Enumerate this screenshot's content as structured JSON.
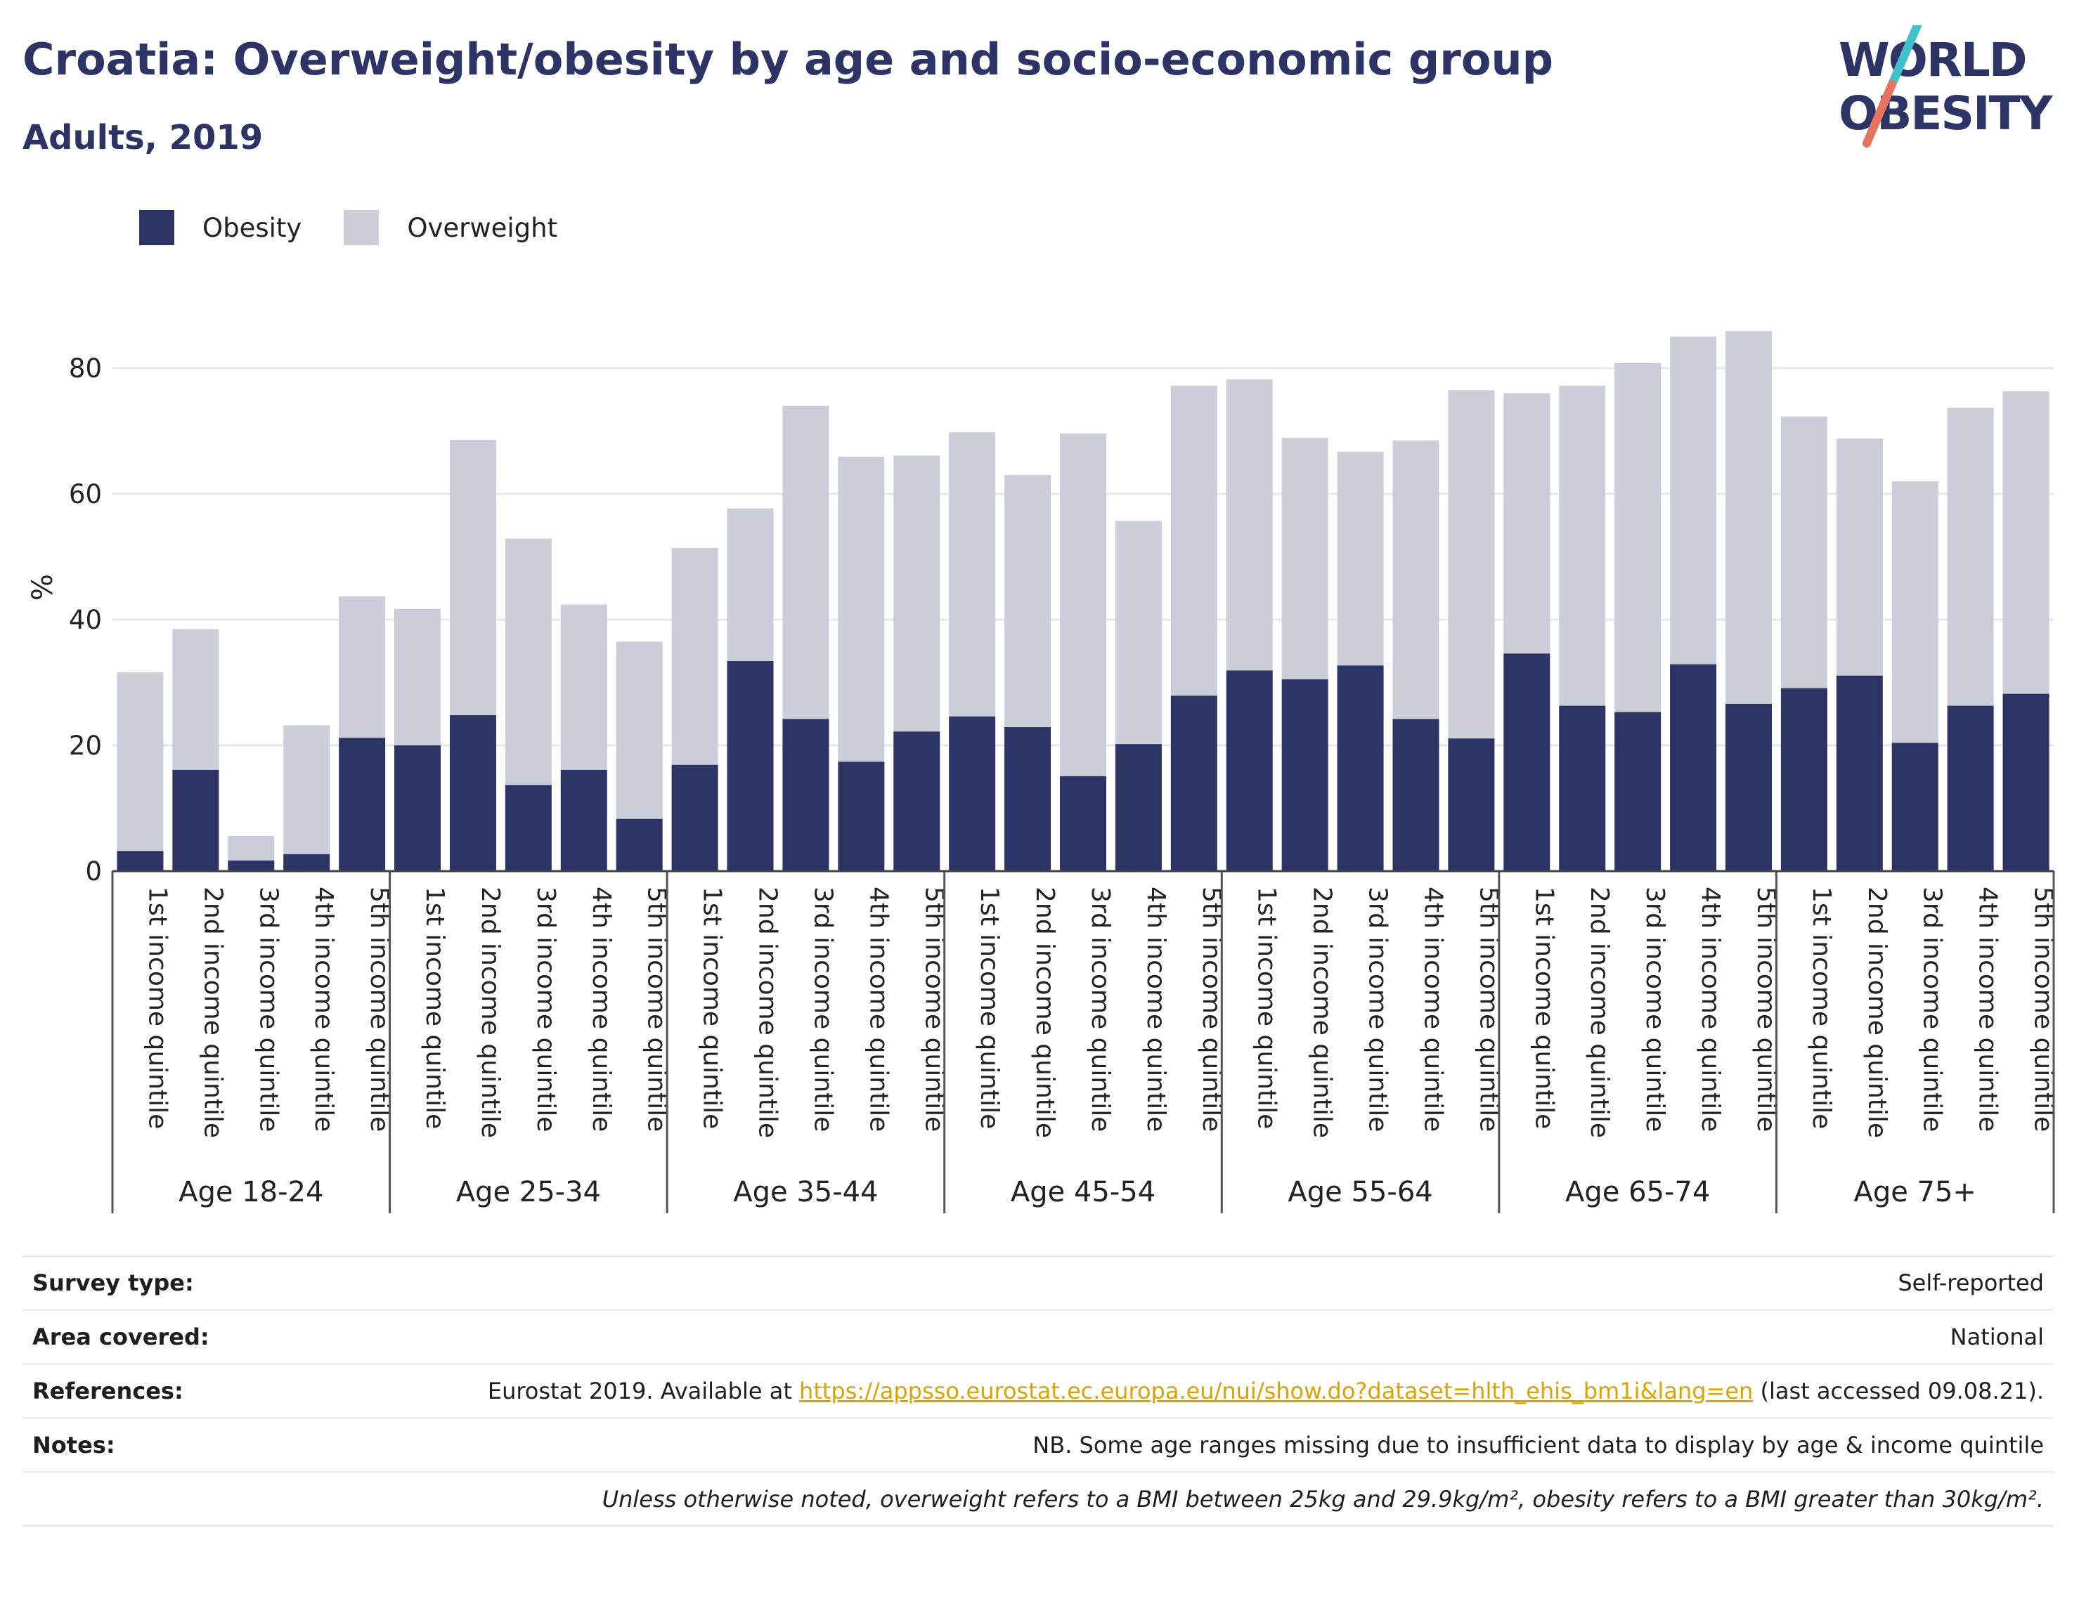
{
  "title": "Croatia: Overweight/obesity by age and socio-economic group",
  "subtitle": "Adults, 2019",
  "logo": {
    "line1": "WORLD",
    "line2": "OBESITY",
    "accent_colors": [
      "#3ec1c9",
      "#e8735f"
    ]
  },
  "colors": {
    "obesity": "#2b3465",
    "overweight": "#cbcdd9",
    "grid": "#e6e7ec",
    "text": "#222222"
  },
  "chart_data": {
    "type": "bar",
    "stacked": true,
    "ylabel": "%",
    "ylim": [
      0,
      90
    ],
    "yticks": [
      0,
      20,
      40,
      60,
      80
    ],
    "grid": "horizontal",
    "legend_position": "top-left",
    "groups": [
      "Age 18-24",
      "Age 25-34",
      "Age 35-44",
      "Age 45-54",
      "Age 55-64",
      "Age 65-74",
      "Age 75+"
    ],
    "categories": [
      "1st income quintile",
      "2nd income quintile",
      "3rd income quintile",
      "4th income quintile",
      "5th income quintile"
    ],
    "series": [
      {
        "name": "Obesity",
        "values": [
          [
            3.2,
            16.1,
            1.7,
            2.7,
            21.2
          ],
          [
            20.0,
            24.8,
            13.7,
            16.1,
            8.3
          ],
          [
            16.9,
            33.4,
            24.2,
            17.4,
            22.2
          ],
          [
            24.6,
            22.9,
            15.1,
            20.2,
            27.9
          ],
          [
            31.9,
            30.5,
            32.7,
            24.2,
            21.1
          ],
          [
            34.6,
            26.3,
            25.3,
            32.9,
            26.6
          ],
          [
            29.1,
            31.1,
            20.4,
            26.3,
            28.2
          ]
        ]
      },
      {
        "name": "Overweight",
        "values": [
          [
            28.4,
            22.4,
            3.9,
            20.5,
            22.5
          ],
          [
            21.7,
            43.8,
            39.2,
            26.3,
            28.2
          ],
          [
            34.5,
            24.3,
            49.8,
            48.5,
            43.9
          ],
          [
            45.2,
            40.1,
            54.5,
            35.5,
            49.3
          ],
          [
            46.3,
            38.4,
            34.0,
            44.3,
            55.4
          ],
          [
            41.4,
            50.9,
            55.5,
            52.1,
            59.3
          ],
          [
            43.2,
            37.7,
            41.6,
            47.4,
            48.1
          ]
        ]
      }
    ]
  },
  "info": {
    "survey_type": {
      "label": "Survey type:",
      "value": "Self-reported"
    },
    "area_covered": {
      "label": "Area covered:",
      "value": "National"
    },
    "references": {
      "label": "References:",
      "text_before": "Eurostat 2019. Available at ",
      "link": "https://appsso.eurostat.ec.europa.eu/nui/show.do?dataset=hlth_ehis_bm1i&lang=en",
      "text_after": " (last accessed 09.08.21)."
    },
    "notes": {
      "label": "Notes:",
      "value": "NB. Some age ranges missing due to insufficient data to display by age & income quintile"
    },
    "footnote": "Unless otherwise noted, overweight refers to a BMI between 25kg and 29.9kg/m², obesity refers to a BMI greater than 30kg/m²."
  }
}
